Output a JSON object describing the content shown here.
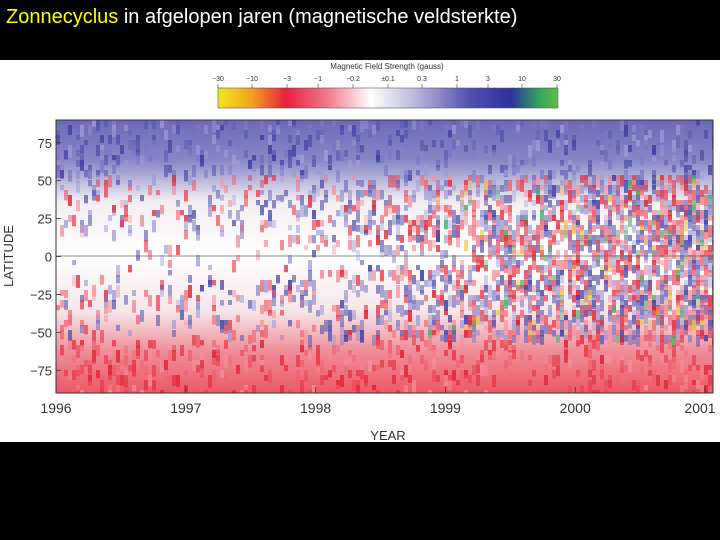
{
  "slide": {
    "title_highlight": "Zonnecyclus",
    "title_rest": " in afgelopen jaren (magnetische veldsterkte)"
  },
  "colors": {
    "title_highlight": "#ffff00",
    "title_text": "#ffffff",
    "background": "#000000",
    "positive": "#3a3aa0",
    "negative": "#e8303c",
    "zero": "#ffffff"
  },
  "chart_data": {
    "type": "heatmap",
    "title": "",
    "xlabel": "YEAR",
    "ylabel": "LATITUDE",
    "x_ticks": [
      "1996",
      "1997",
      "1998",
      "1999",
      "2000",
      "2001"
    ],
    "x_range": [
      1996,
      2001
    ],
    "y_ticks": [
      "75",
      "50",
      "25",
      "0",
      "−25",
      "−50",
      "−75"
    ],
    "y_range": [
      -90,
      90
    ],
    "colorbar": {
      "label": "Magnetic Field Strength (gauss)",
      "ticks": [
        "−30",
        "−10",
        "−3",
        "−1",
        "−0.2",
        "±0.1",
        "0.3",
        "1",
        "3",
        "10",
        "30"
      ],
      "colors": [
        "#f0f020",
        "#f0a020",
        "#e82040",
        "#f08090",
        "#ffffff",
        "#a0a0d0",
        "#5050b0",
        "#3030a0",
        "#30b060",
        "#60c040"
      ]
    }
  }
}
